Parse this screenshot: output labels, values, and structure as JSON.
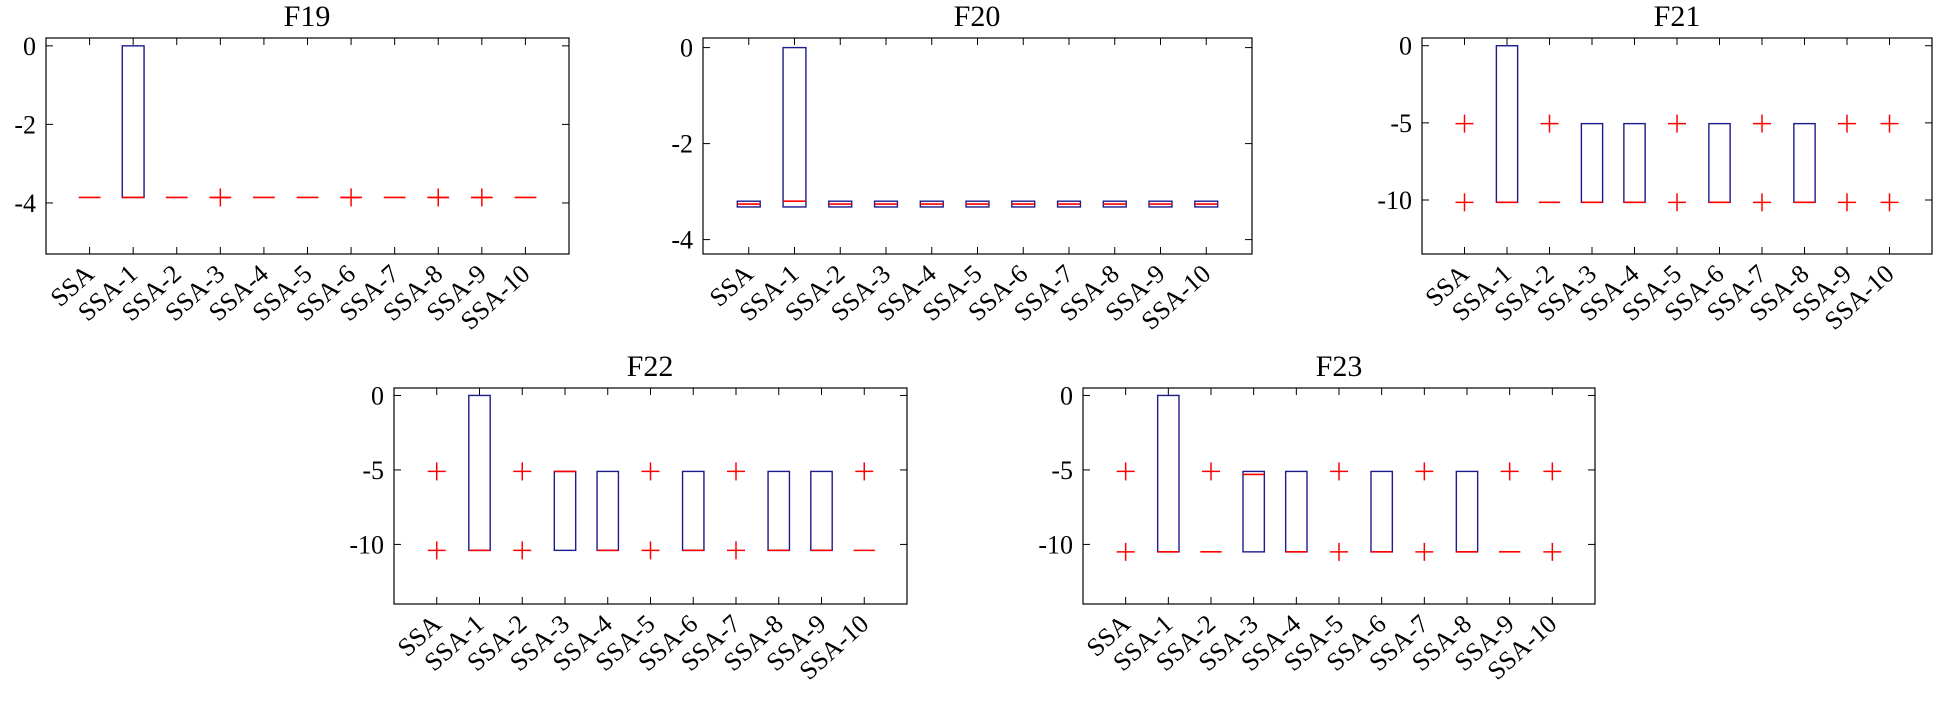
{
  "colors": {
    "box": "#1c1c8c",
    "median": "#ff0000",
    "outlier": "#ff0000",
    "axis": "#000000"
  },
  "chart_data": [
    {
      "type": "box",
      "title": "F19",
      "categories": [
        "SSA",
        "SSA-1",
        "SSA-2",
        "SSA-3",
        "SSA-4",
        "SSA-5",
        "SSA-6",
        "SSA-7",
        "SSA-8",
        "SSA-9",
        "SSA-10"
      ],
      "yticks": [
        0,
        -2,
        -4
      ],
      "ylim": [
        -5.3,
        0.2
      ],
      "boxes": [
        {
          "median": -3.86
        },
        {
          "q1": -3.86,
          "q3": 0,
          "median": -3.86
        },
        {
          "median": -3.86
        },
        {
          "median": -3.86,
          "outliers": [
            -3.86
          ]
        },
        {
          "median": -3.86
        },
        {
          "median": -3.86
        },
        {
          "median": -3.86,
          "outliers": [
            -3.86
          ]
        },
        {
          "median": -3.86
        },
        {
          "median": -3.86,
          "outliers": [
            -3.86
          ]
        },
        {
          "median": -3.86,
          "outliers": [
            -3.86
          ]
        },
        {
          "median": -3.86
        }
      ]
    },
    {
      "type": "box",
      "title": "F20",
      "categories": [
        "SSA",
        "SSA-1",
        "SSA-2",
        "SSA-3",
        "SSA-4",
        "SSA-5",
        "SSA-6",
        "SSA-7",
        "SSA-8",
        "SSA-9",
        "SSA-10"
      ],
      "yticks": [
        0,
        -2,
        -4
      ],
      "ylim": [
        -4.3,
        0.2
      ],
      "boxes": [
        {
          "q1": -3.32,
          "q3": -3.2,
          "median": -3.26
        },
        {
          "q1": -3.32,
          "q3": 0,
          "median": -3.2
        },
        {
          "q1": -3.32,
          "q3": -3.2,
          "median": -3.26
        },
        {
          "q1": -3.32,
          "q3": -3.2,
          "median": -3.26
        },
        {
          "q1": -3.32,
          "q3": -3.2,
          "median": -3.26
        },
        {
          "q1": -3.32,
          "q3": -3.2,
          "median": -3.26
        },
        {
          "q1": -3.32,
          "q3": -3.2,
          "median": -3.26
        },
        {
          "q1": -3.32,
          "q3": -3.2,
          "median": -3.26
        },
        {
          "q1": -3.32,
          "q3": -3.2,
          "median": -3.26
        },
        {
          "q1": -3.32,
          "q3": -3.2,
          "median": -3.26
        },
        {
          "q1": -3.32,
          "q3": -3.2,
          "median": -3.26
        }
      ]
    },
    {
      "type": "box",
      "title": "F21",
      "categories": [
        "SSA",
        "SSA-1",
        "SSA-2",
        "SSA-3",
        "SSA-4",
        "SSA-5",
        "SSA-6",
        "SSA-7",
        "SSA-8",
        "SSA-9",
        "SSA-10"
      ],
      "yticks": [
        0,
        -5,
        -10
      ],
      "ylim": [
        -13.5,
        0.5
      ],
      "boxes": [
        {
          "outliers": [
            -5.05,
            -10.15
          ]
        },
        {
          "q1": -10.15,
          "q3": 0,
          "median": -10.15
        },
        {
          "median": -10.15,
          "outliers": [
            -5.05
          ]
        },
        {
          "q1": -10.15,
          "q3": -5.05,
          "median": -10.15
        },
        {
          "q1": -10.15,
          "q3": -5.05,
          "median": -10.15
        },
        {
          "outliers": [
            -5.05,
            -10.15
          ]
        },
        {
          "q1": -10.15,
          "q3": -5.05,
          "median": -10.15
        },
        {
          "outliers": [
            -5.05,
            -10.15
          ]
        },
        {
          "q1": -10.15,
          "q3": -5.05,
          "median": -10.15
        },
        {
          "outliers": [
            -5.05,
            -10.15
          ]
        },
        {
          "outliers": [
            -5.05,
            -10.15
          ]
        }
      ]
    },
    {
      "type": "box",
      "title": "F22",
      "categories": [
        "SSA",
        "SSA-1",
        "SSA-2",
        "SSA-3",
        "SSA-4",
        "SSA-5",
        "SSA-6",
        "SSA-7",
        "SSA-8",
        "SSA-9",
        "SSA-10"
      ],
      "yticks": [
        0,
        -5,
        -10
      ],
      "ylim": [
        -14,
        0.5
      ],
      "boxes": [
        {
          "outliers": [
            -5.1,
            -10.4
          ]
        },
        {
          "q1": -10.4,
          "q3": 0,
          "median": -10.4
        },
        {
          "outliers": [
            -5.1,
            -10.4
          ]
        },
        {
          "q1": -10.4,
          "q3": -5.1,
          "median": -5.1
        },
        {
          "q1": -10.4,
          "q3": -5.1,
          "median": -10.4
        },
        {
          "outliers": [
            -5.1,
            -10.4
          ]
        },
        {
          "q1": -10.4,
          "q3": -5.1,
          "median": -10.4
        },
        {
          "outliers": [
            -5.1,
            -10.4
          ]
        },
        {
          "q1": -10.4,
          "q3": -5.1,
          "median": -10.4
        },
        {
          "q1": -10.4,
          "q3": -5.1,
          "median": -10.4
        },
        {
          "median": -10.4,
          "outliers": [
            -5.1
          ]
        }
      ]
    },
    {
      "type": "box",
      "title": "F23",
      "categories": [
        "SSA",
        "SSA-1",
        "SSA-2",
        "SSA-3",
        "SSA-4",
        "SSA-5",
        "SSA-6",
        "SSA-7",
        "SSA-8",
        "SSA-9",
        "SSA-10"
      ],
      "yticks": [
        0,
        -5,
        -10
      ],
      "ylim": [
        -14,
        0.5
      ],
      "boxes": [
        {
          "outliers": [
            -5.1,
            -10.5
          ]
        },
        {
          "q1": -10.5,
          "q3": 0,
          "median": -10.5
        },
        {
          "median": -10.5,
          "outliers": [
            -5.1
          ]
        },
        {
          "q1": -10.5,
          "q3": -5.1,
          "median": -5.3
        },
        {
          "q1": -10.5,
          "q3": -5.1,
          "median": -10.5
        },
        {
          "outliers": [
            -5.1,
            -10.5
          ]
        },
        {
          "q1": -10.5,
          "q3": -5.1,
          "median": -10.5
        },
        {
          "outliers": [
            -5.1,
            -10.5
          ]
        },
        {
          "q1": -10.5,
          "q3": -5.1,
          "median": -10.5
        },
        {
          "median": -10.5,
          "outliers": [
            -5.1
          ]
        },
        {
          "outliers": [
            -5.1,
            -10.5
          ]
        }
      ]
    }
  ]
}
